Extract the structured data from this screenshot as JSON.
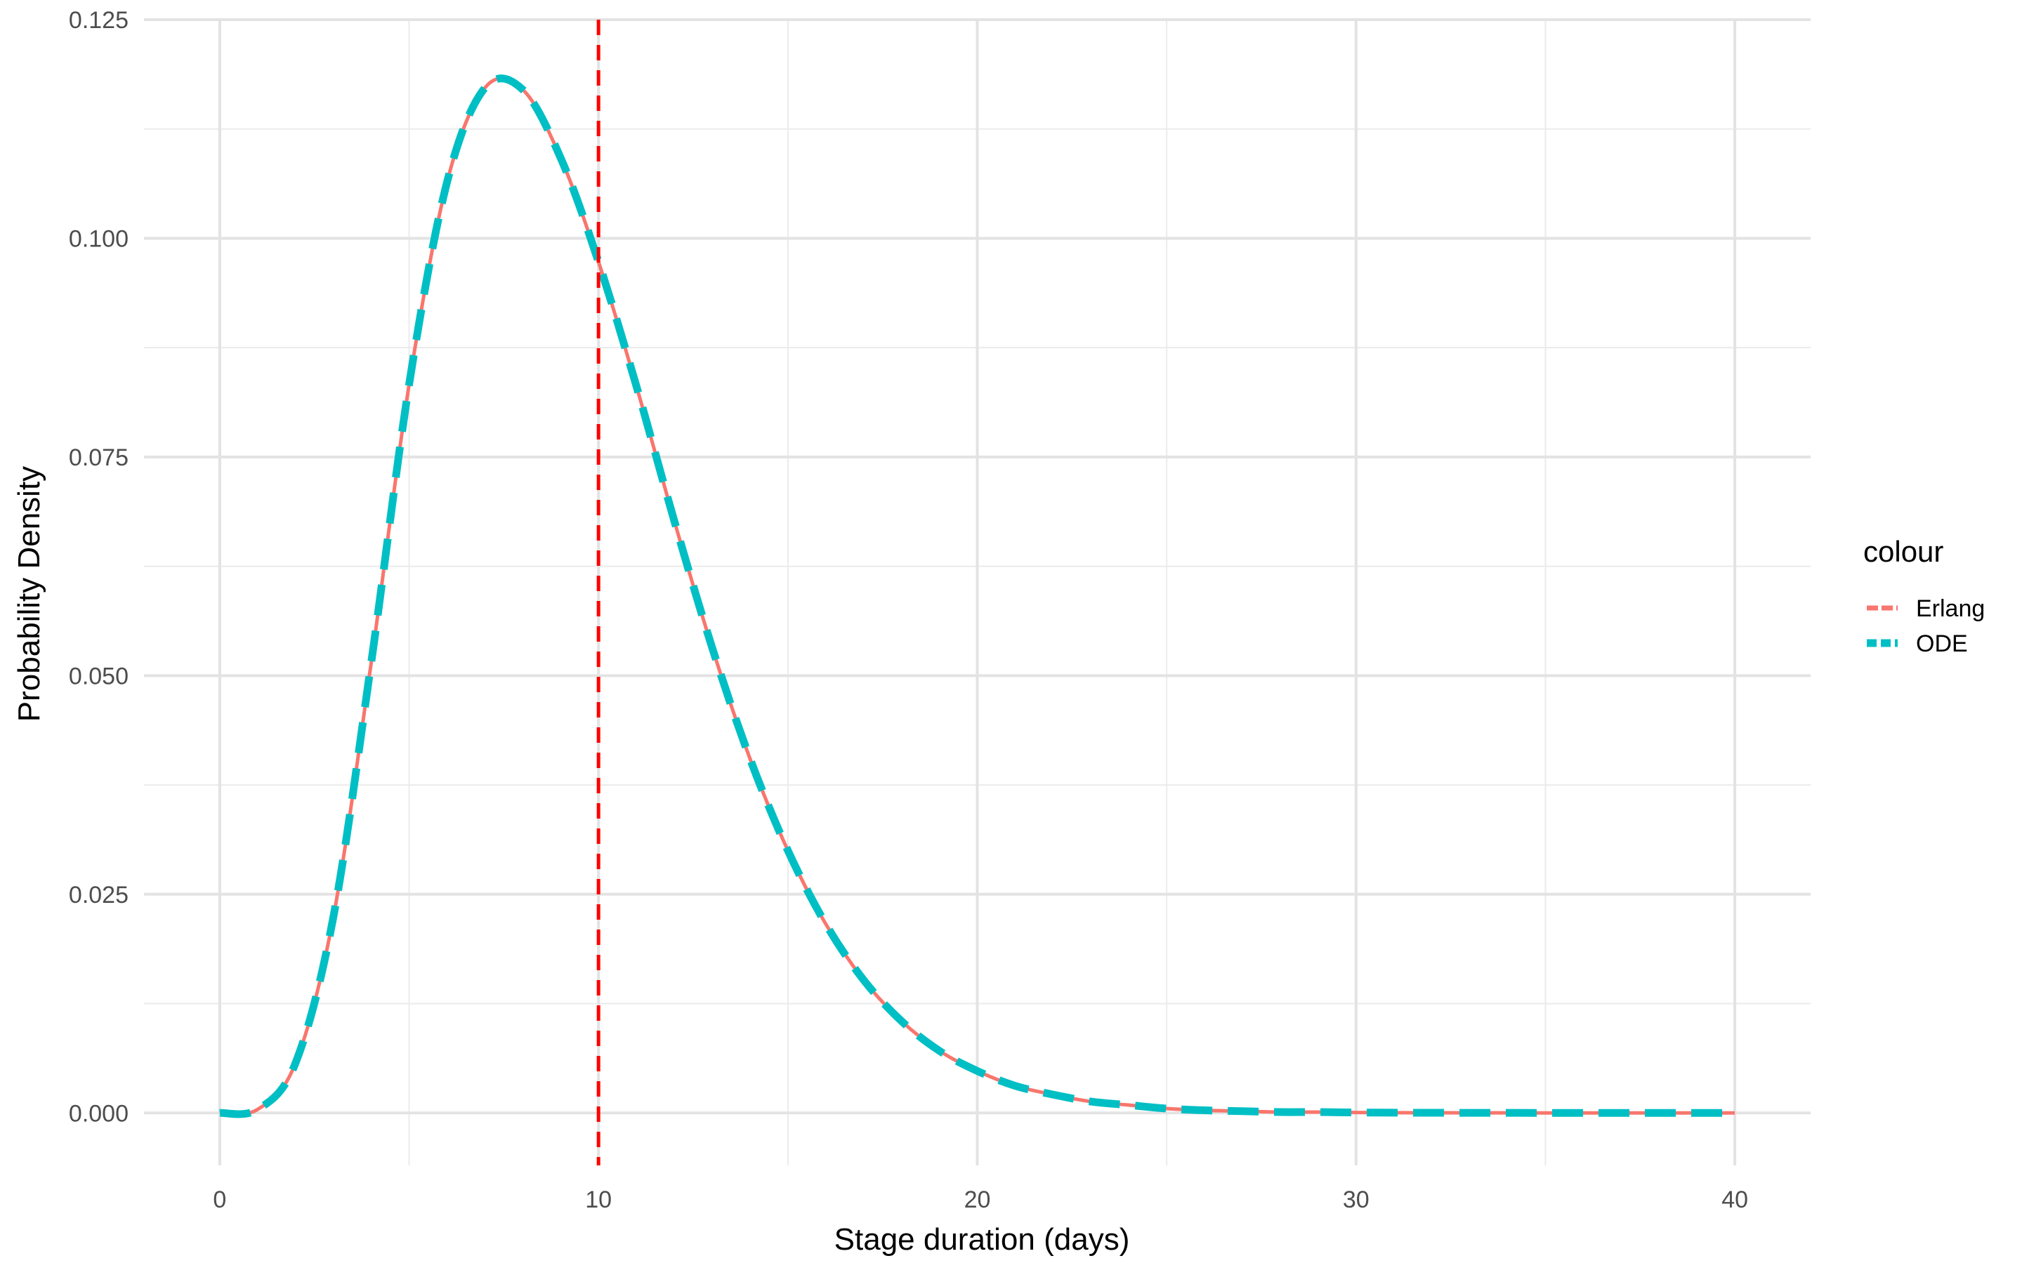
{
  "chart_data": {
    "type": "line",
    "title": "",
    "xlabel": "Stage duration (days)",
    "ylabel": "Probability Density",
    "xlim": [
      -2,
      42
    ],
    "ylim": [
      -0.006,
      0.125
    ],
    "x_ticks": [
      0,
      10,
      20,
      30,
      40
    ],
    "x_tick_labels": [
      "0",
      "10",
      "20",
      "30",
      "40"
    ],
    "y_ticks": [
      0,
      0.025,
      0.05,
      0.075,
      0.1,
      0.125
    ],
    "y_tick_labels": [
      "0.000",
      "0.025",
      "0.050",
      "0.075",
      "0.100",
      "0.125"
    ],
    "grid": true,
    "legend": {
      "title": "colour",
      "position": "right",
      "entries": [
        {
          "label": "Erlang",
          "color": "#F8766D",
          "linetype": "solid"
        },
        {
          "label": "ODE",
          "color": "#00BFC4",
          "linetype": "dashed"
        }
      ]
    },
    "x": [
      0,
      1,
      2,
      3,
      4,
      5,
      6,
      7,
      8,
      9,
      10,
      11,
      12,
      13,
      14,
      15,
      16,
      17,
      18,
      19,
      20,
      21,
      22,
      23,
      24,
      25,
      26,
      27,
      28,
      29,
      30,
      31,
      32,
      33,
      34,
      35,
      36,
      37,
      38,
      39,
      40
    ],
    "series": [
      {
        "name": "Erlang",
        "color": "#F8766D",
        "linetype": "solid",
        "values": [
          0,
          0.0004,
          0.0057,
          0.0224,
          0.0515,
          0.0833,
          0.1064,
          0.1172,
          0.117,
          0.1092,
          0.0973,
          0.0831,
          0.0677,
          0.0532,
          0.0405,
          0.03,
          0.0216,
          0.0152,
          0.0105,
          0.0071,
          0.0048,
          0.0031,
          0.0021,
          0.0013,
          0.0009,
          0.0005,
          0.0003,
          0.0002,
          0.0001,
          0.0001,
          5e-05,
          3e-05,
          2e-05,
          1e-05,
          1e-05,
          0,
          0,
          0,
          0,
          0,
          0
        ]
      },
      {
        "name": "ODE",
        "color": "#00BFC4",
        "linetype": "dashed",
        "values": [
          0,
          0.0004,
          0.0057,
          0.0224,
          0.0515,
          0.0833,
          0.1064,
          0.1172,
          0.117,
          0.1092,
          0.0973,
          0.0831,
          0.0677,
          0.0532,
          0.0405,
          0.03,
          0.0216,
          0.0152,
          0.0105,
          0.0071,
          0.0048,
          0.0031,
          0.0021,
          0.0013,
          0.0009,
          0.0005,
          0.0003,
          0.0002,
          0.0001,
          0.0001,
          5e-05,
          3e-05,
          2e-05,
          1e-05,
          1e-05,
          0,
          0,
          0,
          0,
          0,
          0
        ]
      }
    ],
    "reference_line": {
      "axis": "x",
      "value": 10,
      "color": "#FF0000",
      "linetype": "dashed"
    }
  }
}
